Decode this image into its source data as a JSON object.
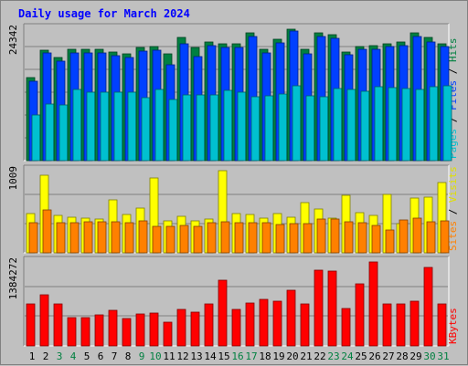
{
  "title": "Daily usage for March 2024",
  "chart_data": [
    {
      "type": "bar",
      "panel": "top",
      "ymax_label": "24342",
      "ymax": 24342,
      "right_label": [
        {
          "text": "Pages",
          "color": "#00c0d0"
        },
        {
          "text": " / ",
          "color": "#000000"
        },
        {
          "text": "Files",
          "color": "#0040ff"
        },
        {
          "text": " / ",
          "color": "#000000"
        },
        {
          "text": "Hits",
          "color": "#008040"
        }
      ],
      "categories": [
        "1",
        "2",
        "3",
        "4",
        "5",
        "6",
        "7",
        "8",
        "9",
        "10",
        "11",
        "12",
        "13",
        "14",
        "15",
        "16",
        "17",
        "18",
        "19",
        "20",
        "21",
        "22",
        "23",
        "24",
        "25",
        "26",
        "27",
        "28",
        "29",
        "30",
        "31"
      ],
      "series": [
        {
          "name": "Hits",
          "color": "#008040",
          "values": [
            15300,
            20500,
            19100,
            20600,
            20600,
            20600,
            20200,
            19800,
            21000,
            21100,
            19800,
            22900,
            20900,
            22000,
            21600,
            21700,
            23700,
            20600,
            22500,
            24400,
            20600,
            23700,
            23400,
            20200,
            21200,
            21300,
            21600,
            21900,
            23700,
            22900,
            21700
          ]
        },
        {
          "name": "Files",
          "color": "#0040ff",
          "values": [
            14700,
            20000,
            18500,
            20000,
            20000,
            20000,
            19500,
            19100,
            20300,
            20500,
            17800,
            21700,
            19200,
            21300,
            21000,
            21000,
            23000,
            20000,
            21800,
            24000,
            19800,
            23000,
            22700,
            19600,
            20600,
            20700,
            21100,
            21300,
            23000,
            22000,
            21100
          ]
        },
        {
          "name": "Pages",
          "color": "#00c0d0",
          "values": [
            8400,
            10500,
            10300,
            13200,
            12600,
            12600,
            12600,
            12700,
            11700,
            13200,
            11300,
            12200,
            12200,
            12100,
            13000,
            12600,
            11900,
            12000,
            12300,
            13800,
            12000,
            11800,
            13300,
            13200,
            12900,
            13700,
            13500,
            13300,
            13200,
            13700,
            13900
          ]
        }
      ]
    },
    {
      "type": "bar",
      "panel": "middle",
      "ymax_label": "1009",
      "ymax": 1009,
      "right_label": [
        {
          "text": "Sites",
          "color": "#ff8000"
        },
        {
          "text": " / ",
          "color": "#000000"
        },
        {
          "text": "Visits",
          "color": "#e0e000"
        }
      ],
      "categories": [
        "1",
        "2",
        "3",
        "4",
        "5",
        "6",
        "7",
        "8",
        "9",
        "10",
        "11",
        "12",
        "13",
        "14",
        "15",
        "16",
        "17",
        "18",
        "19",
        "20",
        "21",
        "22",
        "23",
        "24",
        "25",
        "26",
        "27",
        "28",
        "29",
        "30",
        "31"
      ],
      "series": [
        {
          "name": "Visits",
          "color": "#ffff00",
          "values": [
            480,
            950,
            460,
            440,
            430,
            410,
            650,
            470,
            550,
            920,
            390,
            450,
            390,
            410,
            1009,
            480,
            470,
            430,
            480,
            440,
            620,
            540,
            430,
            710,
            490,
            460,
            720,
            360,
            670,
            680,
            860
          ]
        },
        {
          "name": "Sites",
          "color": "#ff8000",
          "values": [
            370,
            530,
            370,
            370,
            380,
            380,
            380,
            370,
            390,
            330,
            330,
            340,
            330,
            370,
            380,
            370,
            370,
            370,
            350,
            360,
            360,
            410,
            420,
            380,
            370,
            340,
            280,
            400,
            430,
            380,
            390
          ]
        }
      ]
    },
    {
      "type": "bar",
      "panel": "bottom",
      "ymax_label": "1384272",
      "ymax": 1384272,
      "right_label": [
        {
          "text": "KBytes",
          "color": "#ff0000"
        }
      ],
      "categories": [
        "1",
        "2",
        "3",
        "4",
        "5",
        "6",
        "7",
        "8",
        "9",
        "10",
        "11",
        "12",
        "13",
        "14",
        "15",
        "16",
        "17",
        "18",
        "19",
        "20",
        "21",
        "22",
        "23",
        "24",
        "25",
        "26",
        "27",
        "28",
        "29",
        "30",
        "31"
      ],
      "series": [
        {
          "name": "KBytes",
          "color": "#ff0000",
          "values": [
            690000,
            840000,
            690000,
            470000,
            470000,
            510000,
            580000,
            450000,
            530000,
            540000,
            390000,
            600000,
            550000,
            690000,
            1080000,
            600000,
            700000,
            770000,
            730000,
            920000,
            690000,
            1250000,
            1240000,
            620000,
            1020000,
            1384272,
            690000,
            690000,
            740000,
            1290000,
            690000
          ]
        }
      ]
    }
  ],
  "day_labels": [
    {
      "text": "1",
      "color": "#000000"
    },
    {
      "text": "2",
      "color": "#000000"
    },
    {
      "text": "3",
      "color": "#008040"
    },
    {
      "text": "4",
      "color": "#008040"
    },
    {
      "text": "5",
      "color": "#000000"
    },
    {
      "text": "6",
      "color": "#000000"
    },
    {
      "text": "7",
      "color": "#000000"
    },
    {
      "text": "8",
      "color": "#000000"
    },
    {
      "text": "9",
      "color": "#008040"
    },
    {
      "text": "10",
      "color": "#008040"
    },
    {
      "text": "11",
      "color": "#000000"
    },
    {
      "text": "12",
      "color": "#000000"
    },
    {
      "text": "13",
      "color": "#000000"
    },
    {
      "text": "14",
      "color": "#000000"
    },
    {
      "text": "15",
      "color": "#000000"
    },
    {
      "text": "16",
      "color": "#008040"
    },
    {
      "text": "17",
      "color": "#008040"
    },
    {
      "text": "18",
      "color": "#000000"
    },
    {
      "text": "19",
      "color": "#000000"
    },
    {
      "text": "20",
      "color": "#000000"
    },
    {
      "text": "21",
      "color": "#000000"
    },
    {
      "text": "22",
      "color": "#000000"
    },
    {
      "text": "23",
      "color": "#008040"
    },
    {
      "text": "24",
      "color": "#008040"
    },
    {
      "text": "25",
      "color": "#000000"
    },
    {
      "text": "26",
      "color": "#000000"
    },
    {
      "text": "27",
      "color": "#000000"
    },
    {
      "text": "28",
      "color": "#000000"
    },
    {
      "text": "29",
      "color": "#000000"
    },
    {
      "text": "30",
      "color": "#008040"
    },
    {
      "text": "31",
      "color": "#008040"
    }
  ]
}
